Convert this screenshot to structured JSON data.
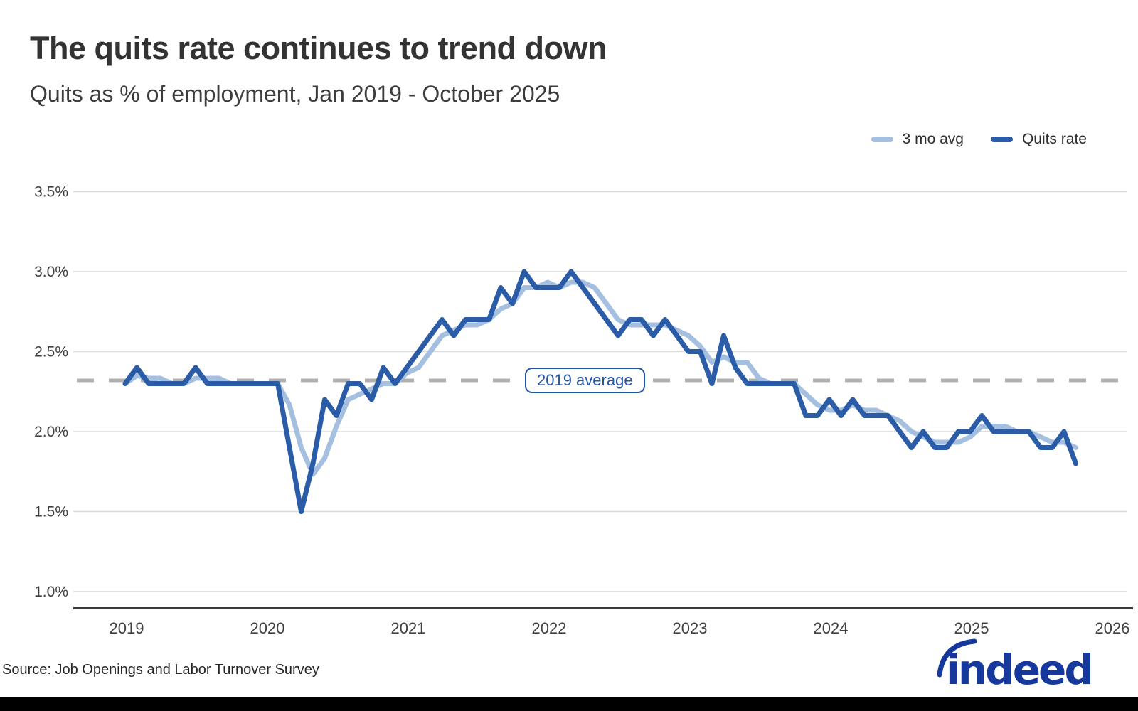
{
  "page": {
    "title": "The quits rate continues to trend down",
    "subtitle": "Quits as % of employment, Jan 2019 - October 2025",
    "source": "Source: Job Openings and Labor Turnover Survey",
    "logo_text": "indeed"
  },
  "colors": {
    "quits_line": "#2b5ca8",
    "avg_line": "#a5bfe0",
    "reference_dash": "#b0b0b0",
    "gridline": "#d9d9d9",
    "axis": "#3b3b3b",
    "annotation_blue": "#2456a8",
    "logo_blue": "#16389d",
    "tick_text": "#404040"
  },
  "legend": {
    "items": [
      {
        "label": "3 mo avg",
        "color": "#a5bfe0"
      },
      {
        "label": "Quits rate",
        "color": "#2b5ca8"
      }
    ]
  },
  "annotation": {
    "label": "2019 average",
    "value": 2.32
  },
  "chart_data": {
    "type": "line",
    "title": "The quits rate continues to trend down",
    "subtitle": "Quits as % of employment, Jan 2019 - October 2025",
    "x_axis": {
      "start": "2019-01",
      "end": "2025-10",
      "frequency": "monthly",
      "tick_labels": [
        "2019",
        "2020",
        "2021",
        "2022",
        "2023",
        "2024",
        "2025",
        "2026"
      ]
    },
    "y_axis": {
      "unit": "%",
      "min": 1.0,
      "max": 3.5,
      "tick_labels": [
        "3.5%",
        "3.0%",
        "2.5%",
        "2.0%",
        "1.5%",
        "1.0%"
      ],
      "tick_values": [
        3.5,
        3.0,
        2.5,
        2.0,
        1.5,
        1.0
      ]
    },
    "grid": true,
    "legend_position": "top-right",
    "reference_line": {
      "label": "2019 average",
      "value": 2.32,
      "style": "dashed"
    },
    "series": [
      {
        "name": "Quits rate",
        "color": "#2b5ca8",
        "values": [
          2.3,
          2.4,
          2.3,
          2.3,
          2.3,
          2.3,
          2.4,
          2.3,
          2.3,
          2.3,
          2.3,
          2.3,
          2.3,
          2.3,
          1.9,
          1.5,
          1.8,
          2.2,
          2.1,
          2.3,
          2.3,
          2.2,
          2.4,
          2.3,
          2.4,
          2.5,
          2.6,
          2.7,
          2.6,
          2.7,
          2.7,
          2.7,
          2.9,
          2.8,
          3.0,
          2.9,
          2.9,
          2.9,
          3.0,
          2.9,
          2.8,
          2.7,
          2.6,
          2.7,
          2.7,
          2.6,
          2.7,
          2.6,
          2.5,
          2.5,
          2.3,
          2.6,
          2.4,
          2.3,
          2.3,
          2.3,
          2.3,
          2.3,
          2.1,
          2.1,
          2.2,
          2.1,
          2.2,
          2.1,
          2.1,
          2.1,
          2.0,
          1.9,
          2.0,
          1.9,
          1.9,
          2.0,
          2.0,
          2.1,
          2.0,
          2.0,
          2.0,
          2.0,
          1.9,
          1.9,
          2.0,
          1.8
        ]
      },
      {
        "name": "3 mo avg",
        "color": "#a5bfe0",
        "derived": "trailing 3-month average of Quits rate"
      }
    ]
  }
}
